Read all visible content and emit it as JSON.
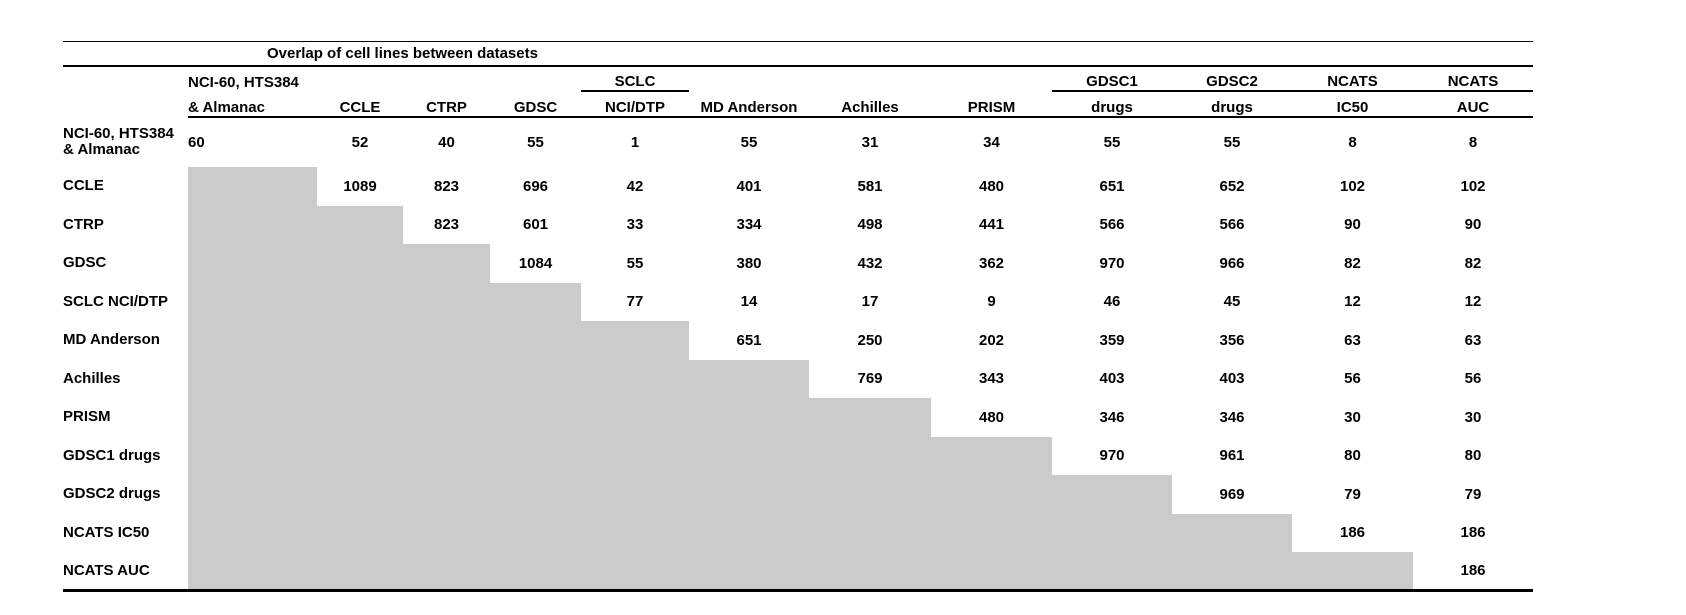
{
  "table": {
    "title": "Overlap of cell lines between datasets",
    "gray_fill": "#cbcbcb",
    "columns": [
      {
        "id": "nci60-almanac",
        "top": "NCI-60, HTS384",
        "bottom": "& Almanac",
        "align": "left",
        "group_underline": false
      },
      {
        "id": "ccle",
        "top": "",
        "bottom": "CCLE",
        "group_underline": false
      },
      {
        "id": "ctrp",
        "top": "",
        "bottom": "CTRP",
        "group_underline": false
      },
      {
        "id": "gdsc",
        "top": "",
        "bottom": "GDSC",
        "group_underline": false
      },
      {
        "id": "sclc-nci-dtp",
        "top": "SCLC",
        "bottom": "NCI/DTP",
        "group_underline": true
      },
      {
        "id": "md-anderson",
        "top": "",
        "bottom": "MD Anderson",
        "group_underline": false
      },
      {
        "id": "achilles",
        "top": "",
        "bottom": "Achilles",
        "group_underline": false
      },
      {
        "id": "prism",
        "top": "",
        "bottom": "PRISM",
        "group_underline": false
      },
      {
        "id": "gdsc1-drugs",
        "top": "GDSC1",
        "bottom": "drugs",
        "group_underline": true
      },
      {
        "id": "gdsc2-drugs",
        "top": "GDSC2",
        "bottom": "drugs",
        "group_underline": true
      },
      {
        "id": "ncats-ic50",
        "top": "NCATS",
        "bottom": "IC50",
        "group_underline": true
      },
      {
        "id": "ncats-auc",
        "top": "NCATS",
        "bottom": "AUC",
        "group_underline": true
      }
    ],
    "rows": [
      {
        "id": "nci60-almanac",
        "label_lines": [
          "NCI-60, HTS384",
          "& Almanac"
        ]
      },
      {
        "id": "ccle",
        "label_lines": [
          "CCLE"
        ]
      },
      {
        "id": "ctrp",
        "label_lines": [
          "CTRP"
        ]
      },
      {
        "id": "gdsc",
        "label_lines": [
          "GDSC"
        ]
      },
      {
        "id": "sclc-nci-dtp",
        "label_lines": [
          "SCLC NCI/DTP"
        ]
      },
      {
        "id": "md-anderson",
        "label_lines": [
          "MD Anderson"
        ]
      },
      {
        "id": "achilles",
        "label_lines": [
          "Achilles"
        ]
      },
      {
        "id": "prism",
        "label_lines": [
          "PRISM"
        ]
      },
      {
        "id": "gdsc1-drugs",
        "label_lines": [
          "GDSC1 drugs"
        ]
      },
      {
        "id": "gdsc2-drugs",
        "label_lines": [
          "GDSC2 drugs"
        ]
      },
      {
        "id": "ncats-ic50",
        "label_lines": [
          "NCATS IC50"
        ]
      },
      {
        "id": "ncats-auc",
        "label_lines": [
          "NCATS AUC"
        ]
      }
    ]
  },
  "chart_data": {
    "type": "table",
    "title": "Overlap of cell lines between datasets",
    "row_labels": [
      "NCI-60, HTS384 & Almanac",
      "CCLE",
      "CTRP",
      "GDSC",
      "SCLC NCI/DTP",
      "MD Anderson",
      "Achilles",
      "PRISM",
      "GDSC1 drugs",
      "GDSC2 drugs",
      "NCATS IC50",
      "NCATS AUC"
    ],
    "column_labels": [
      "NCI-60, HTS384 & Almanac",
      "CCLE",
      "CTRP",
      "GDSC",
      "SCLC NCI/DTP",
      "MD Anderson",
      "Achilles",
      "PRISM",
      "GDSC1 drugs",
      "GDSC2 drugs",
      "NCATS IC50",
      "NCATS AUC"
    ],
    "matrix": [
      [
        60,
        52,
        40,
        55,
        1,
        55,
        31,
        34,
        55,
        55,
        8,
        8
      ],
      [
        null,
        1089,
        823,
        696,
        42,
        401,
        581,
        480,
        651,
        652,
        102,
        102
      ],
      [
        null,
        null,
        823,
        601,
        33,
        334,
        498,
        441,
        566,
        566,
        90,
        90
      ],
      [
        null,
        null,
        null,
        1084,
        55,
        380,
        432,
        362,
        970,
        966,
        82,
        82
      ],
      [
        null,
        null,
        null,
        null,
        77,
        14,
        17,
        9,
        46,
        45,
        12,
        12
      ],
      [
        null,
        null,
        null,
        null,
        null,
        651,
        250,
        202,
        359,
        356,
        63,
        63
      ],
      [
        null,
        null,
        null,
        null,
        null,
        null,
        769,
        343,
        403,
        403,
        56,
        56
      ],
      [
        null,
        null,
        null,
        null,
        null,
        null,
        null,
        480,
        346,
        346,
        30,
        30
      ],
      [
        null,
        null,
        null,
        null,
        null,
        null,
        null,
        null,
        970,
        961,
        80,
        80
      ],
      [
        null,
        null,
        null,
        null,
        null,
        null,
        null,
        null,
        null,
        969,
        79,
        79
      ],
      [
        null,
        null,
        null,
        null,
        null,
        null,
        null,
        null,
        null,
        null,
        186,
        186
      ],
      [
        null,
        null,
        null,
        null,
        null,
        null,
        null,
        null,
        null,
        null,
        null,
        186
      ]
    ],
    "layout_hints": {
      "lower_triangle": "shaded gray, no values",
      "diagonal": "dataset self cell-line counts",
      "grid": "off"
    }
  }
}
